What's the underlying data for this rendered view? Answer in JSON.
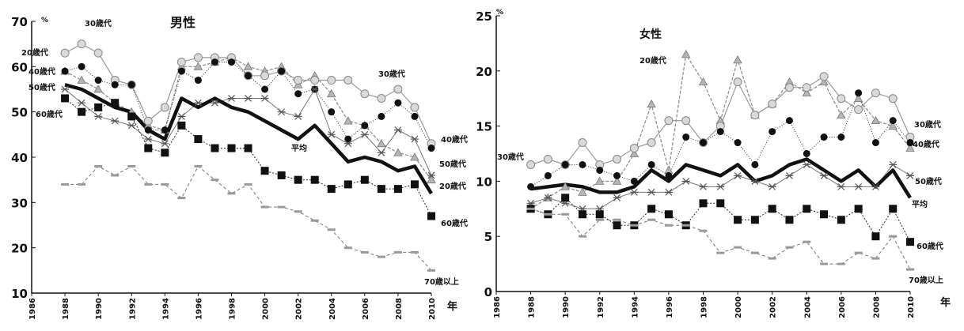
{
  "chart_data": [
    {
      "type": "line",
      "title": "男性",
      "unit_label": "%",
      "xunit": "年",
      "ylim": [
        10,
        70
      ],
      "yticks": [
        "10",
        "20",
        "30",
        "40",
        "50",
        "60",
        "70"
      ],
      "xlim": [
        1986,
        2010
      ],
      "xticks": [
        "1986",
        "1988",
        "1990",
        "1992",
        "1994",
        "1996",
        "1998",
        "2000",
        "2002",
        "2004",
        "2006",
        "2008",
        "2010"
      ],
      "series": [
        {
          "name": "20歳代",
          "style": "tri",
          "x": [
            1988,
            1989,
            1990,
            1991,
            1992,
            1993,
            1994,
            1995,
            1996,
            1997,
            1998,
            1999,
            2000,
            2001,
            2002,
            2003,
            2004,
            2005,
            2006,
            2007,
            2008,
            2009,
            2010
          ],
          "values": [
            59,
            57,
            55,
            52,
            50,
            47,
            46,
            60,
            60,
            61,
            62,
            60,
            59,
            60,
            56,
            58,
            54,
            48,
            47,
            43,
            41,
            40,
            35
          ]
        },
        {
          "name": "30歳代",
          "style": "circle",
          "x": [
            1988,
            1989,
            1990,
            1991,
            1992,
            1993,
            1994,
            1995,
            1996,
            1997,
            1998,
            1999,
            2000,
            2001,
            2002,
            2003,
            2004,
            2005,
            2006,
            2007,
            2008,
            2009,
            2010
          ],
          "values": [
            63,
            65,
            63,
            57,
            56,
            48,
            51,
            61,
            62,
            62,
            62,
            58,
            58,
            59,
            57,
            57,
            57,
            57,
            54,
            53,
            55,
            51,
            43
          ]
        },
        {
          "name": "40歳代",
          "style": "dot",
          "x": [
            1988,
            1989,
            1990,
            1991,
            1992,
            1993,
            1994,
            1995,
            1996,
            1997,
            1998,
            1999,
            2000,
            2001,
            2002,
            2003,
            2004,
            2005,
            2006,
            2007,
            2008,
            2009,
            2010
          ],
          "values": [
            59,
            60,
            57,
            56,
            56,
            46,
            46,
            59,
            57,
            61,
            61,
            58,
            55,
            59,
            54,
            55,
            50,
            44,
            47,
            49,
            52,
            49,
            42
          ]
        },
        {
          "name": "50歳代",
          "style": "star",
          "x": [
            1988,
            1989,
            1990,
            1991,
            1992,
            1993,
            1994,
            1995,
            1996,
            1997,
            1998,
            1999,
            2000,
            2001,
            2002,
            2003,
            2004,
            2005,
            2006,
            2007,
            2008,
            2009,
            2010
          ],
          "values": [
            55,
            52,
            49,
            48,
            47,
            44,
            43,
            49,
            52,
            52,
            53,
            53,
            53,
            50,
            49,
            55,
            45,
            43,
            45,
            41,
            46,
            44,
            36
          ]
        },
        {
          "name": "60歳代",
          "style": "square",
          "x": [
            1988,
            1989,
            1990,
            1991,
            1992,
            1993,
            1994,
            1995,
            1996,
            1997,
            1998,
            1999,
            2000,
            2001,
            2002,
            2003,
            2004,
            2005,
            2006,
            2007,
            2008,
            2009,
            2010
          ],
          "values": [
            53,
            50,
            51,
            52,
            49,
            42,
            41,
            47,
            44,
            42,
            42,
            42,
            37,
            36,
            35,
            35,
            33,
            34,
            35,
            33,
            33,
            34,
            27
          ]
        },
        {
          "name": "70歳以上",
          "style": "dash",
          "x": [
            1988,
            1989,
            1990,
            1991,
            1992,
            1993,
            1994,
            1995,
            1996,
            1997,
            1998,
            1999,
            2000,
            2001,
            2002,
            2003,
            2004,
            2005,
            2006,
            2007,
            2008,
            2009,
            2010
          ],
          "values": [
            34,
            34,
            38,
            36,
            38,
            34,
            34,
            31,
            38,
            35,
            32,
            34,
            29,
            29,
            28,
            26,
            24,
            20,
            19,
            18,
            19,
            19,
            15
          ]
        },
        {
          "name": "平均",
          "style": "thick",
          "x": [
            1988,
            1989,
            1990,
            1991,
            1992,
            1993,
            1994,
            1995,
            1996,
            1997,
            1998,
            1999,
            2000,
            2001,
            2002,
            2003,
            2004,
            2005,
            2006,
            2007,
            2008,
            2009,
            2010
          ],
          "values": [
            56,
            55,
            53,
            51,
            50,
            46,
            44,
            53,
            51,
            53,
            51,
            50,
            48,
            46,
            44,
            47,
            43,
            39,
            40,
            39,
            37,
            38,
            32
          ]
        }
      ],
      "labels": {
        "s20": "20歳代",
        "s30": "30歳代",
        "s30b": "30歳代",
        "s40": "40歳代",
        "s40b": "40歳代",
        "s50": "50歳代",
        "s50b": "50歳代",
        "s60": "60歳代",
        "s60b": "60歳代",
        "s20b": "20歳代",
        "s70": "70歳以上",
        "avg": "平均"
      }
    },
    {
      "type": "line",
      "title": "女性",
      "unit_label": "%",
      "xunit": "年",
      "ylim": [
        0,
        25
      ],
      "yticks": [
        "0",
        "5",
        "10",
        "15",
        "20",
        "25"
      ],
      "xlim": [
        1986,
        2010
      ],
      "xticks": [
        "1986",
        "1988",
        "1990",
        "1992",
        "1994",
        "1996",
        "1998",
        "2000",
        "2002",
        "2004",
        "2006",
        "2008",
        "2010"
      ],
      "series": [
        {
          "name": "20歳代",
          "style": "tri",
          "x": [
            1988,
            1989,
            1990,
            1991,
            1992,
            1993,
            1994,
            1995,
            1996,
            1997,
            1998,
            1999,
            2000,
            2001,
            2002,
            2003,
            2004,
            2005,
            2006,
            2007,
            2008,
            2009,
            2010
          ],
          "values": [
            7.5,
            8.5,
            9.5,
            9.0,
            10.0,
            10.0,
            12.5,
            17.0,
            11.0,
            21.5,
            19.0,
            15.5,
            21.0,
            16.0,
            17.0,
            19.0,
            18.0,
            19.0,
            16.0,
            17.5,
            15.5,
            15.0,
            13.0
          ]
        },
        {
          "name": "30歳代",
          "style": "circle",
          "x": [
            1988,
            1989,
            1990,
            1991,
            1992,
            1993,
            1994,
            1995,
            1996,
            1997,
            1998,
            1999,
            2000,
            2001,
            2002,
            2003,
            2004,
            2005,
            2006,
            2007,
            2008,
            2009,
            2010
          ],
          "values": [
            11.5,
            12.0,
            11.5,
            13.5,
            11.5,
            12.0,
            13.0,
            13.5,
            15.5,
            15.5,
            13.5,
            15.0,
            19.0,
            16.0,
            17.0,
            18.5,
            18.5,
            19.5,
            17.5,
            16.5,
            18.0,
            17.5,
            14.0
          ]
        },
        {
          "name": "40歳代",
          "style": "dot",
          "x": [
            1988,
            1989,
            1990,
            1991,
            1992,
            1993,
            1994,
            1995,
            1996,
            1997,
            1998,
            1999,
            2000,
            2001,
            2002,
            2003,
            2004,
            2005,
            2006,
            2007,
            2008,
            2009,
            2010
          ],
          "values": [
            9.5,
            10.5,
            11.5,
            11.5,
            11.0,
            10.5,
            10.0,
            11.5,
            10.5,
            14.0,
            13.5,
            14.5,
            13.5,
            11.5,
            14.5,
            15.5,
            12.5,
            14.0,
            14.0,
            18.0,
            13.5,
            15.5,
            13.5
          ]
        },
        {
          "name": "50歳代",
          "style": "star",
          "x": [
            1988,
            1989,
            1990,
            1991,
            1992,
            1993,
            1994,
            1995,
            1996,
            1997,
            1998,
            1999,
            2000,
            2001,
            2002,
            2003,
            2004,
            2005,
            2006,
            2007,
            2008,
            2009,
            2010
          ],
          "values": [
            8.0,
            8.5,
            8.0,
            7.5,
            7.5,
            8.5,
            9.0,
            9.0,
            9.0,
            10.0,
            9.5,
            9.5,
            10.5,
            10.0,
            9.5,
            10.5,
            11.5,
            10.5,
            9.5,
            9.5,
            9.5,
            11.5,
            10.5
          ]
        },
        {
          "name": "60歳代",
          "style": "square",
          "x": [
            1988,
            1989,
            1990,
            1991,
            1992,
            1993,
            1994,
            1995,
            1996,
            1997,
            1998,
            1999,
            2000,
            2001,
            2002,
            2003,
            2004,
            2005,
            2006,
            2007,
            2008,
            2009,
            2010
          ],
          "values": [
            7.5,
            7.0,
            8.5,
            7.0,
            7.0,
            6.0,
            6.0,
            7.5,
            7.0,
            6.0,
            8.0,
            8.0,
            6.5,
            6.5,
            7.5,
            6.5,
            7.5,
            7.0,
            6.5,
            7.5,
            5.0,
            7.5,
            4.5
          ]
        },
        {
          "name": "70歳以上",
          "style": "dash",
          "x": [
            1988,
            1989,
            1990,
            1991,
            1992,
            1993,
            1994,
            1995,
            1996,
            1997,
            1998,
            1999,
            2000,
            2001,
            2002,
            2003,
            2004,
            2005,
            2006,
            2007,
            2008,
            2009,
            2010
          ],
          "values": [
            7.5,
            7.0,
            7.0,
            5.0,
            6.5,
            6.5,
            6.0,
            6.5,
            6.0,
            6.0,
            5.5,
            3.5,
            4.0,
            3.5,
            3.0,
            4.0,
            4.5,
            2.5,
            2.5,
            3.5,
            3.0,
            5.0,
            2.0
          ]
        },
        {
          "name": "平均",
          "style": "thick",
          "x": [
            1988,
            1989,
            1990,
            1991,
            1992,
            1993,
            1994,
            1995,
            1996,
            1997,
            1998,
            1999,
            2000,
            2001,
            2002,
            2003,
            2004,
            2005,
            2006,
            2007,
            2008,
            2009,
            2010
          ],
          "values": [
            9.3,
            9.5,
            9.7,
            9.5,
            9.0,
            9.0,
            9.5,
            11.0,
            10.0,
            11.5,
            11.0,
            10.5,
            11.5,
            10.0,
            10.5,
            11.5,
            12.0,
            11.0,
            10.0,
            11.0,
            9.5,
            11.0,
            8.5
          ]
        }
      ],
      "labels": {
        "s20": "20歳代",
        "s30": "30歳代",
        "s30b": "30歳代",
        "s40": "40歳代",
        "s50": "50歳代",
        "s60": "60歳代",
        "s70": "70歳以上",
        "avg": "平均"
      }
    }
  ]
}
